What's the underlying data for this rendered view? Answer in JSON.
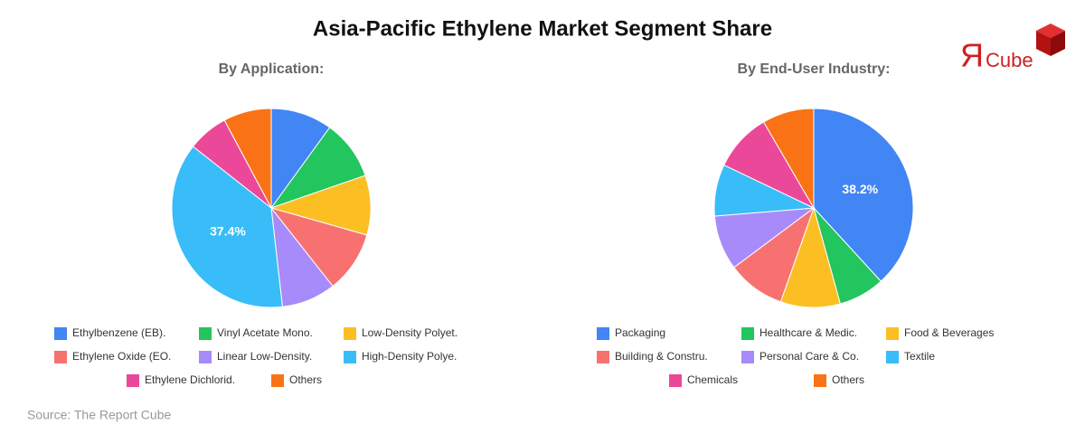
{
  "title": "Asia-Pacific Ethylene Market Segment Share",
  "logo": {
    "mark": "Я",
    "text": "Cube"
  },
  "source": "Source: The Report Cube",
  "chart_data": [
    {
      "type": "pie",
      "title": "By Application:",
      "categories": [
        "Ethylbenzene (EB).",
        "Vinyl Acetate Mono.",
        "Low-Density Polyet.",
        "Ethylene Oxide (EO.",
        "Linear Low-Density.",
        "High-Density Polye.",
        "Ethylene Dichlorid.",
        "Others"
      ],
      "values": [
        10,
        9.7,
        9.7,
        10,
        8.8,
        37.4,
        6.6,
        7.8
      ],
      "value_labels": [
        null,
        null,
        null,
        null,
        null,
        "37.4%",
        null,
        null
      ],
      "colors": [
        "#4285f4",
        "#22c55e",
        "#fbbf24",
        "#f87171",
        "#a78bfa",
        "#38bdf8",
        "#ec4899",
        "#f97316"
      ]
    },
    {
      "type": "pie",
      "title": "By End-User Industry:",
      "categories": [
        "Packaging",
        "Healthcare & Medic.",
        "Food & Beverages",
        "Building & Constru.",
        "Personal Care & Co.",
        "Textile",
        "Chemicals",
        "Others"
      ],
      "values": [
        38.2,
        7.5,
        9.7,
        9.4,
        8.9,
        8.4,
        9.5,
        8.4
      ],
      "value_labels": [
        "38.2%",
        null,
        null,
        null,
        null,
        null,
        null,
        null
      ],
      "colors": [
        "#4285f4",
        "#22c55e",
        "#fbbf24",
        "#f87171",
        "#a78bfa",
        "#38bdf8",
        "#ec4899",
        "#f97316"
      ]
    }
  ]
}
